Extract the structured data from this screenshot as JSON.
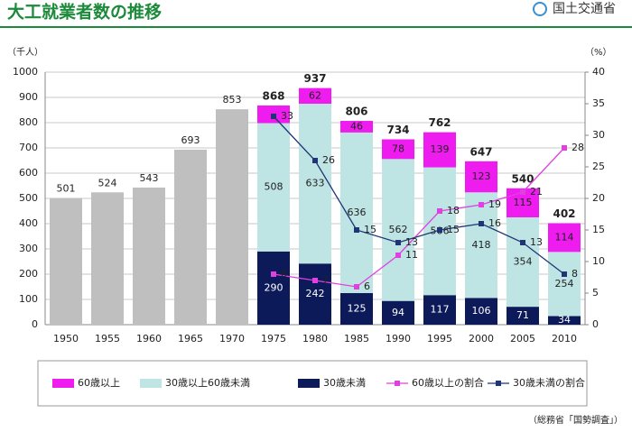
{
  "header": {
    "title": "大工就業者数の推移",
    "logo": "国土交通省"
  },
  "chart_data": {
    "type": "bar",
    "y_label": "（千人）",
    "y2_label": "（%）",
    "source": "（総務省「国勢調査」）",
    "categories": [
      "1950",
      "1955",
      "1960",
      "1965",
      "1970",
      "1975",
      "1980",
      "1985",
      "1990",
      "1995",
      "2000",
      "2005",
      "2010"
    ],
    "ylim": [
      0,
      1000
    ],
    "yticks": [
      0,
      100,
      200,
      300,
      400,
      500,
      600,
      700,
      800,
      900,
      1000
    ],
    "y2lim": [
      0,
      40
    ],
    "y2ticks": [
      0,
      5,
      10,
      15,
      20,
      25,
      30,
      35,
      40
    ],
    "grid": true,
    "stacked": true,
    "series": [
      {
        "color": "#bfbfbf",
        "values": [
          501,
          524,
          543,
          693,
          853,
          null,
          null,
          null,
          null,
          null,
          null,
          null,
          null
        ]
      },
      {
        "name": "60歳以上",
        "color": "#ee1cee",
        "values": [
          null,
          null,
          null,
          null,
          null,
          70,
          62,
          46,
          78,
          139,
          123,
          115,
          114
        ],
        "value_labels": [
          null,
          null,
          null,
          null,
          null,
          null,
          "62",
          "46",
          "78",
          "139",
          "123",
          "115",
          "114"
        ]
      },
      {
        "name": "30歳以上60歳未満",
        "color": "#bfe4e4",
        "values": [
          null,
          null,
          null,
          null,
          null,
          508,
          633,
          636,
          562,
          506,
          418,
          354,
          254
        ]
      },
      {
        "name": "30歳未満",
        "color": "#0c1a5a",
        "values": [
          null,
          null,
          null,
          null,
          null,
          290,
          242,
          125,
          94,
          117,
          106,
          71,
          34
        ]
      },
      {
        "name": "60歳以上の割合",
        "type": "line",
        "axis": "y2",
        "color": "#e040e0",
        "values": [
          null,
          null,
          null,
          null,
          null,
          8,
          7,
          6,
          11,
          18,
          19,
          21,
          28
        ]
      },
      {
        "name": "30歳未満の割合",
        "type": "line",
        "axis": "y2",
        "color": "#1f3575",
        "values": [
          null,
          null,
          null,
          null,
          null,
          33,
          26,
          15,
          13,
          15,
          16,
          13,
          8
        ]
      }
    ],
    "totals": [
      null,
      null,
      null,
      null,
      null,
      868,
      937,
      806,
      734,
      762,
      647,
      540,
      402
    ]
  }
}
